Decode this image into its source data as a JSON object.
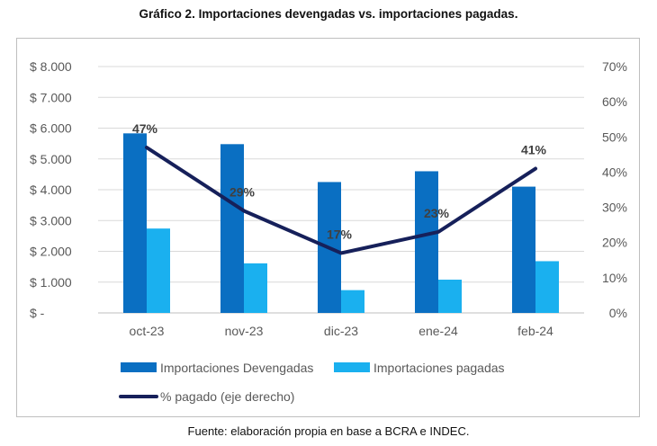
{
  "title": "Gráfico 2. Importaciones devengadas vs. importaciones pagadas.",
  "source": "Fuente: elaboración propia en base a BCRA e INDEC.",
  "chart_data": {
    "type": "bar",
    "categories": [
      "oct-23",
      "nov-23",
      "dic-23",
      "ene-24",
      "feb-24"
    ],
    "series": [
      {
        "name": "Importaciones Devengadas",
        "type": "bar",
        "axis": "left",
        "color": "#0a6fc2",
        "values": [
          5830,
          5480,
          4250,
          4600,
          4100
        ]
      },
      {
        "name": "Importaciones pagadas",
        "type": "bar",
        "axis": "left",
        "color": "#1ab0ef",
        "values": [
          2740,
          1610,
          740,
          1080,
          1680
        ]
      },
      {
        "name": "% pagado (eje derecho)",
        "type": "line",
        "axis": "right",
        "color": "#16205a",
        "values": [
          47,
          29,
          17,
          23,
          41
        ],
        "labels": [
          "47%",
          "29%",
          "17%",
          "23%",
          "41%"
        ]
      }
    ],
    "y_left": {
      "min": 0,
      "max": 8000,
      "ticks": [
        "$ -",
        "$ 1.000",
        "$ 2.000",
        "$ 3.000",
        "$ 4.000",
        "$ 5.000",
        "$ 6.000",
        "$ 7.000",
        "$ 8.000"
      ]
    },
    "y_right": {
      "min": 0,
      "max": 70,
      "ticks": [
        "0%",
        "10%",
        "20%",
        "30%",
        "40%",
        "50%",
        "60%",
        "70%"
      ]
    },
    "grid": true,
    "legend": "bottom",
    "axis_label_color": "#595959",
    "gridline_color": "#d9d9d9",
    "data_label_color": "#404040"
  }
}
